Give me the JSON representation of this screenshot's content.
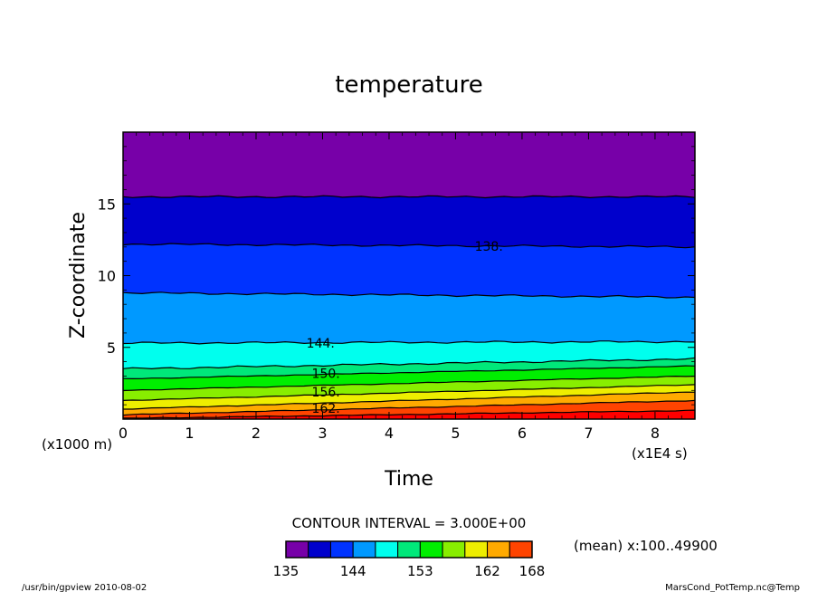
{
  "chart_data": {
    "type": "contour",
    "title": "temperature",
    "xlabel": "Time",
    "ylabel": "Z-coordinate",
    "x_unit_label": "(x1E4 s)",
    "y_unit_label": "(x1000 m)",
    "xlim": [
      0,
      8.6
    ],
    "ylim": [
      0,
      20
    ],
    "x_ticks": [
      "0",
      "1",
      "2",
      "3",
      "4",
      "5",
      "6",
      "7",
      "8"
    ],
    "y_ticks": [
      "5",
      "10",
      "15"
    ],
    "contour_interval_label": "CONTOUR INTERVAL = 3.000E+00",
    "color_levels": [
      135,
      138,
      141,
      144,
      147,
      150,
      153,
      156,
      159,
      162,
      165,
      168
    ],
    "colorbar_labels": [
      "135",
      "144",
      "153",
      "162",
      "168"
    ],
    "colors": [
      "#7700a8",
      "#0000cc",
      "#0033ff",
      "#0099ff",
      "#00ffee",
      "#00e87a",
      "#00ee00",
      "#88ee00",
      "#eeee00",
      "#ffaa00",
      "#ff4400",
      "#ff0000"
    ],
    "contour_lines": [
      {
        "level": "",
        "z_start": 15.5,
        "z_end": 15.5
      },
      {
        "level": "138.",
        "z_start": 12.2,
        "z_end": 12.0
      },
      {
        "level": "",
        "z_start": 8.8,
        "z_end": 8.5
      },
      {
        "level": "144.",
        "z_start": 5.3,
        "z_end": 5.4
      },
      {
        "level": "",
        "z_start": 3.5,
        "z_end": 4.2
      },
      {
        "level": "150.",
        "z_start": 2.8,
        "z_end": 3.7
      },
      {
        "level": "",
        "z_start": 2.0,
        "z_end": 3.0
      },
      {
        "level": "156.",
        "z_start": 1.3,
        "z_end": 2.4
      },
      {
        "level": "",
        "z_start": 0.7,
        "z_end": 1.9
      },
      {
        "level": "162.",
        "z_start": 0.3,
        "z_end": 1.3
      },
      {
        "level": "",
        "z_start": 0.05,
        "z_end": 0.6
      }
    ],
    "line_labels": [
      {
        "text": "138.",
        "x": 5.5,
        "z": 12.05
      },
      {
        "text": "144.",
        "x": 2.97,
        "z": 5.3
      },
      {
        "text": "150.",
        "x": 3.05,
        "z": 3.2
      },
      {
        "text": "156.",
        "x": 3.05,
        "z": 1.9
      },
      {
        "text": "162.",
        "x": 3.05,
        "z": 0.75
      }
    ],
    "note": "(mean) x:100..49900"
  },
  "footer": {
    "left": "/usr/bin/gpview  2010-08-02",
    "right": "MarsCond_PotTemp.nc@Temp"
  }
}
